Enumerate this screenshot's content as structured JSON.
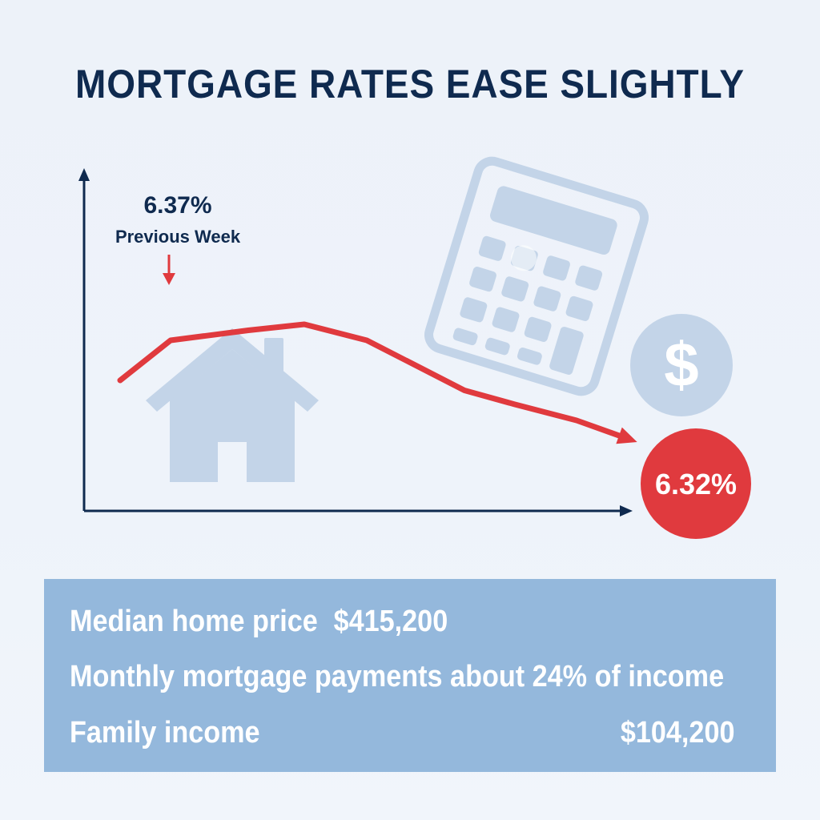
{
  "title": "MORTGAGE RATES EASE SLIGHTLY",
  "chart_data": {
    "type": "line",
    "series": [
      {
        "values": [
          6.35,
          6.37,
          6.375,
          6.378,
          6.37,
          6.345,
          6.338,
          6.33,
          6.33,
          6.32
        ]
      }
    ],
    "ylim": [
      6.3,
      6.4
    ],
    "annotations": [
      {
        "value": "6.37%",
        "label": "Previous Week"
      },
      {
        "value": "6.32%"
      }
    ]
  },
  "info": {
    "median_label": "Median home price",
    "median_value": "$415,200",
    "payment_text": "Monthly mortgage payments about 24% of income",
    "income_label": "Family income",
    "income_value": "$104,200"
  },
  "colors": {
    "title": "#0f2a4f",
    "line": "#e03a3e",
    "axis": "#0f2a4f",
    "icon": "#c5d5e8",
    "box": "#94b8dc"
  },
  "icons": [
    "house-icon",
    "calculator-icon",
    "dollar-coin-icon"
  ]
}
